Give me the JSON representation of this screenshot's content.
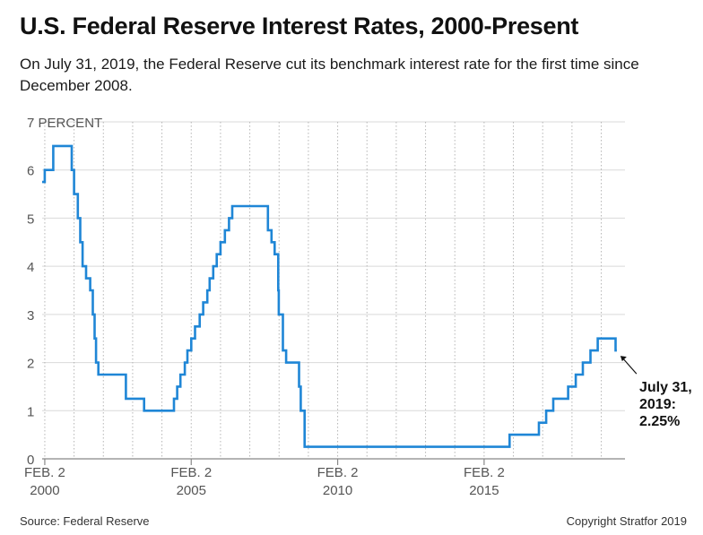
{
  "title": "U.S. Federal Reserve Interest Rates, 2000-Present",
  "subtitle": "On July 31, 2019, the Federal Reserve cut its benchmark interest rate for the first time since December 2008.",
  "source": "Source: Federal Reserve",
  "copyright": "Copyright Stratfor 2019",
  "colors": {
    "line": "#1f86d6",
    "grid": "#d9d9d9",
    "axis": "#888888"
  },
  "chart_data": {
    "type": "line",
    "title": "U.S. Federal Reserve Interest Rates, 2000-Present",
    "ylabel": "PERCENT",
    "xlabel": "",
    "ylim": [
      0,
      7
    ],
    "xlim": [
      2000.0,
      2019.9
    ],
    "y_ticks": [
      {
        "value": 0,
        "label": "0"
      },
      {
        "value": 1,
        "label": "1"
      },
      {
        "value": 2,
        "label": "2"
      },
      {
        "value": 3,
        "label": "3"
      },
      {
        "value": 4,
        "label": "4"
      },
      {
        "value": 5,
        "label": "5"
      },
      {
        "value": 6,
        "label": "6"
      },
      {
        "value": 7,
        "label": "7 PERCENT"
      }
    ],
    "x_ticks": [
      {
        "value": 2000.09,
        "line1": "FEB. 2",
        "line2": "2000"
      },
      {
        "value": 2005.09,
        "line1": "FEB. 2",
        "line2": "2005"
      },
      {
        "value": 2010.09,
        "line1": "FEB. 2",
        "line2": "2010"
      },
      {
        "value": 2015.09,
        "line1": "FEB. 2",
        "line2": "2015"
      }
    ],
    "grid": true,
    "series": [
      {
        "name": "Federal funds target rate",
        "step": true,
        "points": [
          [
            2000.0,
            5.75
          ],
          [
            2000.09,
            6.0
          ],
          [
            2000.38,
            6.5
          ],
          [
            2001.01,
            6.0
          ],
          [
            2001.09,
            5.5
          ],
          [
            2001.22,
            5.0
          ],
          [
            2001.3,
            4.5
          ],
          [
            2001.38,
            4.0
          ],
          [
            2001.5,
            3.75
          ],
          [
            2001.64,
            3.5
          ],
          [
            2001.73,
            3.0
          ],
          [
            2001.79,
            2.5
          ],
          [
            2001.84,
            2.0
          ],
          [
            2001.92,
            1.75
          ],
          [
            2002.86,
            1.25
          ],
          [
            2003.48,
            1.0
          ],
          [
            2004.5,
            1.25
          ],
          [
            2004.61,
            1.5
          ],
          [
            2004.72,
            1.75
          ],
          [
            2004.87,
            2.0
          ],
          [
            2004.96,
            2.25
          ],
          [
            2005.09,
            2.5
          ],
          [
            2005.22,
            2.75
          ],
          [
            2005.38,
            3.0
          ],
          [
            2005.5,
            3.25
          ],
          [
            2005.64,
            3.5
          ],
          [
            2005.72,
            3.75
          ],
          [
            2005.84,
            4.0
          ],
          [
            2005.96,
            4.25
          ],
          [
            2006.09,
            4.5
          ],
          [
            2006.24,
            4.75
          ],
          [
            2006.38,
            5.0
          ],
          [
            2006.49,
            5.25
          ],
          [
            2007.71,
            4.75
          ],
          [
            2007.83,
            4.5
          ],
          [
            2007.94,
            4.25
          ],
          [
            2008.06,
            3.5
          ],
          [
            2008.08,
            3.0
          ],
          [
            2008.22,
            2.25
          ],
          [
            2008.33,
            2.0
          ],
          [
            2008.77,
            1.5
          ],
          [
            2008.83,
            1.0
          ],
          [
            2008.96,
            0.25
          ],
          [
            2015.96,
            0.5
          ],
          [
            2016.96,
            0.75
          ],
          [
            2017.21,
            1.0
          ],
          [
            2017.45,
            1.25
          ],
          [
            2017.96,
            1.5
          ],
          [
            2018.22,
            1.75
          ],
          [
            2018.46,
            2.0
          ],
          [
            2018.72,
            2.25
          ],
          [
            2018.97,
            2.5
          ],
          [
            2019.58,
            2.25
          ],
          [
            2019.62,
            2.25
          ]
        ]
      }
    ],
    "annotations": [
      {
        "name": "latest-cut",
        "x": 2019.62,
        "y": 2.25,
        "lines": [
          "July 31,",
          "2019:",
          "2.25%"
        ]
      }
    ]
  }
}
